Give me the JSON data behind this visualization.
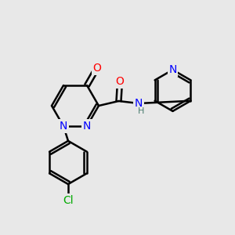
{
  "bg_color": "#e8e8e8",
  "bond_color": "#000000",
  "bond_width": 1.8,
  "atom_colors": {
    "O": "#ff0000",
    "N": "#0000ff",
    "Cl": "#00aa00",
    "C": "#000000",
    "H": "#4a7c6f"
  },
  "font_size_atom": 10,
  "font_size_small": 8
}
